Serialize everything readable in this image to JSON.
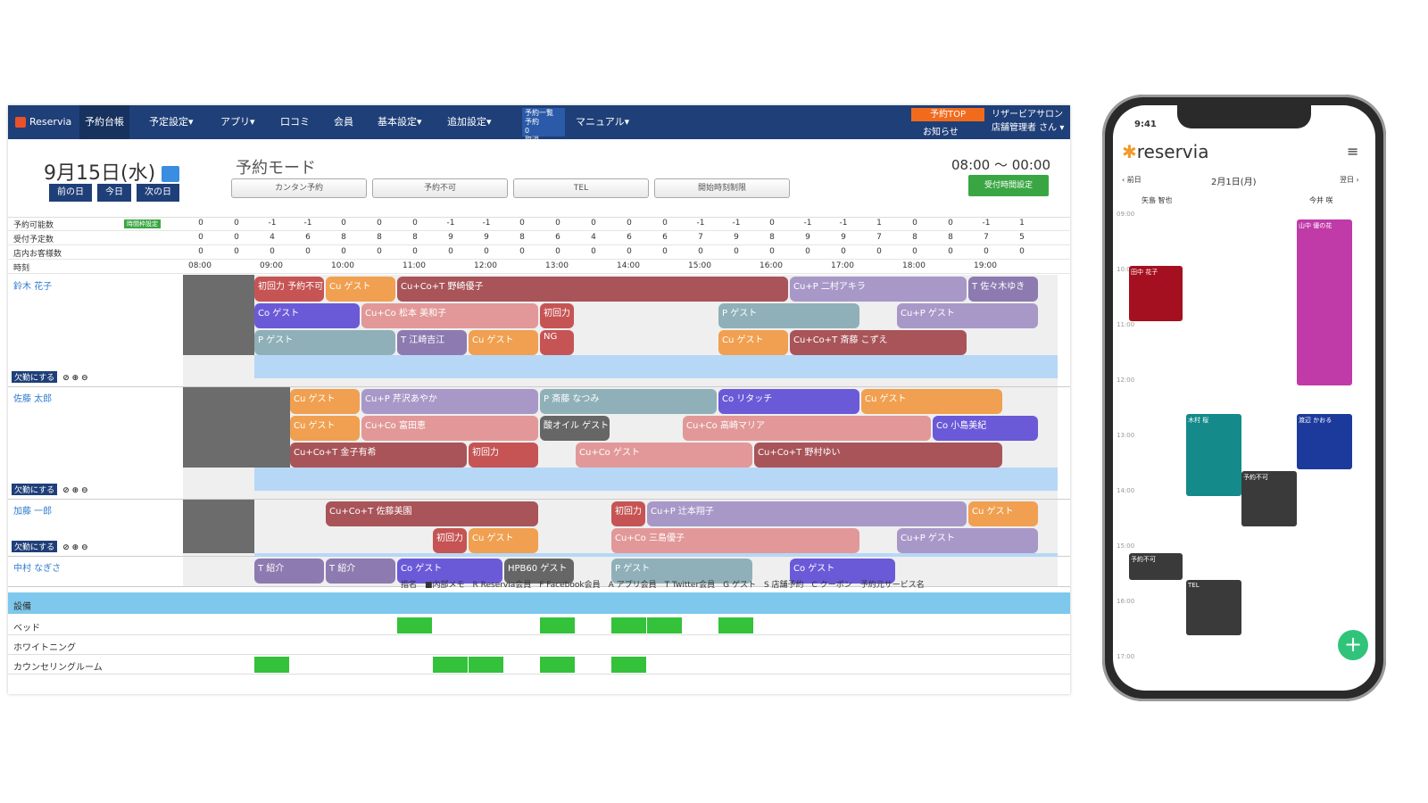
{
  "nav": {
    "brand": "Reservia",
    "items": [
      "予約台帳",
      "予定設定▾",
      "アプリ▾",
      "口コミ",
      "会員",
      "基本設定▾",
      "追加設定▾"
    ],
    "list_box": [
      "予約一覧",
      "予約　　　0",
      "取消　　　0"
    ],
    "manual": "マニュアル▾",
    "top_button": "予約TOP",
    "notice": "お知らせ",
    "salon": "リザービアサロン",
    "user": "店舗管理者 さん ▾"
  },
  "header": {
    "date": "9月15日(水)",
    "prev": "前の日",
    "today": "今日",
    "next": "次の日",
    "mode": "予約モード",
    "mode_buttons": [
      "カンタン予約",
      "予約不可",
      "TEL",
      "開始時刻制限"
    ],
    "hours": "08:00 〜 00:00",
    "hours_button": "受付時間設定"
  },
  "summary": {
    "rows": [
      {
        "label": "予約可能数",
        "badge": "時間枠設定",
        "values": [
          "0",
          "0",
          "-1",
          "-1",
          "0",
          "0",
          "0",
          "-1",
          "-1",
          "0",
          "0",
          "0",
          "0",
          "0",
          "-1",
          "-1",
          "0",
          "-1",
          "-1",
          "1",
          "0",
          "0",
          "-1",
          "1"
        ]
      },
      {
        "label": "受付予定数",
        "values": [
          "0",
          "0",
          "4",
          "6",
          "8",
          "8",
          "8",
          "9",
          "9",
          "8",
          "6",
          "4",
          "6",
          "6",
          "7",
          "9",
          "8",
          "9",
          "9",
          "7",
          "8",
          "8",
          "7",
          "5"
        ]
      },
      {
        "label": "店内お客様数",
        "values": [
          "0",
          "0",
          "0",
          "0",
          "0",
          "0",
          "0",
          "0",
          "0",
          "0",
          "0",
          "0",
          "0",
          "0",
          "0",
          "0",
          "0",
          "0",
          "0",
          "0",
          "0",
          "0",
          "0",
          "0"
        ]
      }
    ],
    "time_label": "時刻",
    "times": [
      "08:00",
      "09:00",
      "10:00",
      "11:00",
      "12:00",
      "13:00",
      "14:00",
      "15:00",
      "16:00",
      "17:00",
      "18:00",
      "19:00"
    ]
  },
  "staff": [
    {
      "name": "鈴木 花子"
    },
    {
      "name": "佐藤 太郎"
    },
    {
      "name": "加藤 一郎"
    },
    {
      "name": "中村 なぎさ"
    }
  ],
  "ops_label": "欠勤にする",
  "bookings": [
    {
      "s": 0,
      "r": 0,
      "a": 2,
      "b": 4,
      "t": "初回力 予約不可",
      "c": "#c65454"
    },
    {
      "s": 0,
      "r": 0,
      "a": 4,
      "b": 6,
      "t": "Cu ゲスト",
      "c": "#f0a050"
    },
    {
      "s": 0,
      "r": 0,
      "a": 6,
      "b": 17,
      "t": "Cu+Co+T 野崎優子",
      "c": "#a85458"
    },
    {
      "s": 0,
      "r": 0,
      "a": 17,
      "b": 22,
      "t": "Cu+P 二村アキラ",
      "c": "#a898c8"
    },
    {
      "s": 0,
      "r": 0,
      "a": 22,
      "b": 24,
      "t": "T 佐々木ゆき",
      "c": "#8c7ab0"
    },
    {
      "s": 0,
      "r": 1,
      "a": 2,
      "b": 5,
      "t": "Co ゲスト",
      "c": "#6a5ad8"
    },
    {
      "s": 0,
      "r": 1,
      "a": 5,
      "b": 10,
      "t": "Cu+Co 松本 美和子",
      "c": "#e29898"
    },
    {
      "s": 0,
      "r": 1,
      "a": 10,
      "b": 11,
      "t": "初回力",
      "c": "#c65454"
    },
    {
      "s": 0,
      "r": 1,
      "a": 15,
      "b": 19,
      "t": "P ゲスト",
      "c": "#8fb0b8"
    },
    {
      "s": 0,
      "r": 1,
      "a": 20,
      "b": 24,
      "t": "Cu+P ゲスト",
      "c": "#a898c8"
    },
    {
      "s": 0,
      "r": 2,
      "a": 2,
      "b": 6,
      "t": "P ゲスト",
      "c": "#8fb0b8"
    },
    {
      "s": 0,
      "r": 2,
      "a": 6,
      "b": 8,
      "t": "T 江崎吉江",
      "c": "#8c7ab0"
    },
    {
      "s": 0,
      "r": 2,
      "a": 8,
      "b": 10,
      "t": "Cu ゲスト",
      "c": "#f0a050"
    },
    {
      "s": 0,
      "r": 2,
      "a": 10,
      "b": 11,
      "t": "NG",
      "c": "#c65454"
    },
    {
      "s": 0,
      "r": 2,
      "a": 15,
      "b": 17,
      "t": "Cu ゲスト",
      "c": "#f0a050"
    },
    {
      "s": 0,
      "r": 2,
      "a": 17,
      "b": 22,
      "t": "Cu+Co+T 斎藤 こずえ",
      "c": "#a85458"
    },
    {
      "s": 1,
      "r": 0,
      "a": 3,
      "b": 5,
      "t": "Cu ゲスト",
      "c": "#f0a050"
    },
    {
      "s": 1,
      "r": 0,
      "a": 5,
      "b": 10,
      "t": "Cu+P 芹沢あやか",
      "c": "#a898c8"
    },
    {
      "s": 1,
      "r": 0,
      "a": 10,
      "b": 15,
      "t": "P 斎藤 なつみ",
      "c": "#8fb0b8"
    },
    {
      "s": 1,
      "r": 0,
      "a": 15,
      "b": 19,
      "t": "Co リタッチ",
      "c": "#6a5ad8"
    },
    {
      "s": 1,
      "r": 0,
      "a": 19,
      "b": 23,
      "t": "Cu ゲスト",
      "c": "#f0a050"
    },
    {
      "s": 1,
      "r": 1,
      "a": 3,
      "b": 5,
      "t": "Cu ゲスト",
      "c": "#f0a050"
    },
    {
      "s": 1,
      "r": 1,
      "a": 5,
      "b": 10,
      "t": "Cu+Co 富田恵",
      "c": "#e29898"
    },
    {
      "s": 1,
      "r": 1,
      "a": 10,
      "b": 12,
      "t": "酸オイル ゲスト",
      "c": "#666666"
    },
    {
      "s": 1,
      "r": 1,
      "a": 14,
      "b": 21,
      "t": "Cu+Co 高崎マリア",
      "c": "#e29898"
    },
    {
      "s": 1,
      "r": 1,
      "a": 21,
      "b": 24,
      "t": "Co 小島美紀",
      "c": "#6a5ad8"
    },
    {
      "s": 1,
      "r": 2,
      "a": 3,
      "b": 8,
      "t": "Cu+Co+T 金子有希",
      "c": "#a85458"
    },
    {
      "s": 1,
      "r": 2,
      "a": 8,
      "b": 10,
      "t": "初回力",
      "c": "#c65454"
    },
    {
      "s": 1,
      "r": 2,
      "a": 11,
      "b": 16,
      "t": "Cu+Co ゲスト",
      "c": "#e29898"
    },
    {
      "s": 1,
      "r": 2,
      "a": 16,
      "b": 23,
      "t": "Cu+Co+T 野村ゆい",
      "c": "#a85458"
    },
    {
      "s": 2,
      "r": 0,
      "a": 4,
      "b": 10,
      "t": "Cu+Co+T 佐藤美園",
      "c": "#a85458"
    },
    {
      "s": 2,
      "r": 0,
      "a": 12,
      "b": 13,
      "t": "初回力",
      "c": "#c65454"
    },
    {
      "s": 2,
      "r": 0,
      "a": 13,
      "b": 22,
      "t": "Cu+P 辻本翔子",
      "c": "#a898c8"
    },
    {
      "s": 2,
      "r": 0,
      "a": 22,
      "b": 24,
      "t": "Cu ゲスト",
      "c": "#f0a050"
    },
    {
      "s": 2,
      "r": 1,
      "a": 7,
      "b": 8,
      "t": "初回力",
      "c": "#c65454"
    },
    {
      "s": 2,
      "r": 1,
      "a": 8,
      "b": 10,
      "t": "Cu ゲスト",
      "c": "#f0a050"
    },
    {
      "s": 2,
      "r": 1,
      "a": 12,
      "b": 19,
      "t": "Cu+Co 三島優子",
      "c": "#e29898"
    },
    {
      "s": 2,
      "r": 1,
      "a": 20,
      "b": 24,
      "t": "Cu+P ゲスト",
      "c": "#a898c8"
    },
    {
      "s": 3,
      "r": 0,
      "a": 2,
      "b": 4,
      "t": "T 紹介",
      "c": "#8c7ab0"
    },
    {
      "s": 3,
      "r": 0,
      "a": 4,
      "b": 6,
      "t": "T 紹介",
      "c": "#8c7ab0"
    },
    {
      "s": 3,
      "r": 0,
      "a": 6,
      "b": 9,
      "t": "Co ゲスト",
      "c": "#6a5ad8"
    },
    {
      "s": 3,
      "r": 0,
      "a": 9,
      "b": 11,
      "t": "HPB60 ゲスト",
      "c": "#666666"
    },
    {
      "s": 3,
      "r": 0,
      "a": 12,
      "b": 16,
      "t": "P ゲスト",
      "c": "#8fb0b8"
    },
    {
      "s": 3,
      "r": 0,
      "a": 17,
      "b": 20,
      "t": "Co ゲスト",
      "c": "#6a5ad8"
    }
  ],
  "legend": "指名　■内部メモ　R Reservia会員　F Facebook会員　A アプリ会員　T Twitter会員　G ゲスト　S 店舗予約　C クーポン　予約元サービス名",
  "equipment": {
    "header": "設備",
    "rows": [
      {
        "label": "ベッド",
        "slots": [
          6,
          10,
          12,
          13,
          15
        ]
      },
      {
        "label": "ホワイトニング",
        "slots": []
      },
      {
        "label": "カウンセリングルーム",
        "slots": [
          2,
          7,
          8,
          10,
          12
        ]
      }
    ]
  },
  "phone": {
    "time": "9:41",
    "brand": "reservia",
    "menu": "メニュー",
    "prev": "前日",
    "date": "2月1日(月)",
    "next": "翌日",
    "staff": [
      "矢島 智也",
      "今井 咲"
    ],
    "hours": [
      "09:00",
      "10:00",
      "11:00",
      "12:00",
      "13:00",
      "14:00",
      "15:00",
      "16:00",
      "17:00"
    ],
    "events": [
      {
        "t": "田中 花子",
        "c": "#a51020"
      },
      {
        "t": "山中 優の花",
        "c": "#c03aa8"
      },
      {
        "t": "木村 桜",
        "c": "#148a8a"
      },
      {
        "t": "渡辺 かおる",
        "c": "#1b3a9c"
      },
      {
        "t": "予約不可",
        "c": "#3a3a3a"
      },
      {
        "t": "予約不可",
        "c": "#3a3a3a"
      },
      {
        "t": "TEL",
        "c": "#3a3a3a"
      }
    ]
  }
}
